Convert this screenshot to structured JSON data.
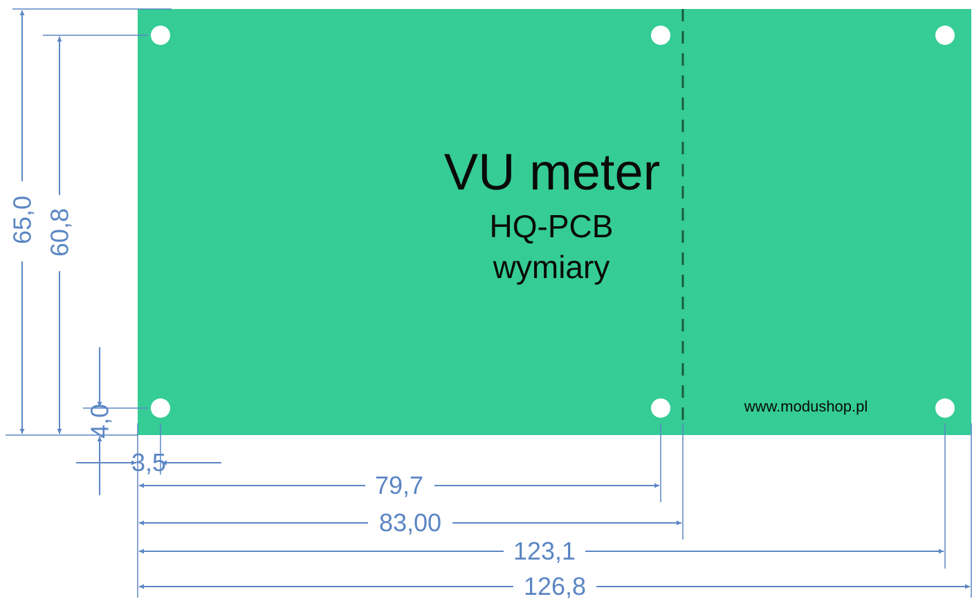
{
  "board": {
    "title": "VU meter",
    "subtitle": "HQ-PCB",
    "caption": "wymiary",
    "url": "www.modushop.pl"
  },
  "dimensions": {
    "width_total": "126,8",
    "hole_span_right": "123,1",
    "cut_line": "83,00",
    "hole_span_mid": "79,7",
    "hole_offset_x": "3,5",
    "hole_offset_y": "4,0",
    "height_total": "65,0",
    "hole_span_vertical": "60,8"
  },
  "colors": {
    "pcb": "#35cc96",
    "dimension": "#5b86c4",
    "hole": "#ffffff",
    "cut_line": "#1a5a3a",
    "text": "#0a0a0a"
  }
}
